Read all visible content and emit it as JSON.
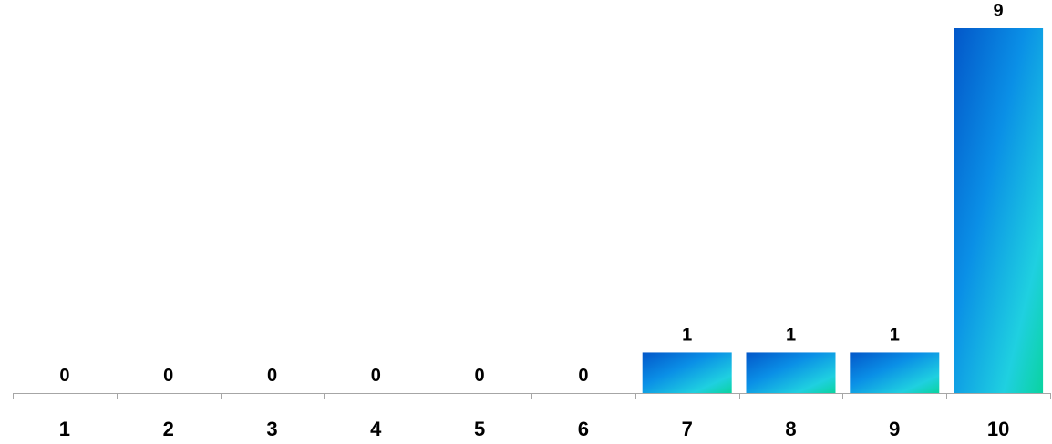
{
  "chart_data": {
    "type": "bar",
    "categories": [
      "1",
      "2",
      "3",
      "4",
      "5",
      "6",
      "7",
      "8",
      "9",
      "10"
    ],
    "values": [
      0,
      0,
      0,
      0,
      0,
      0,
      1,
      1,
      1,
      9
    ],
    "value_labels": [
      "0",
      "0",
      "0",
      "0",
      "0",
      "0",
      "1",
      "1",
      "1",
      "9"
    ],
    "title": "",
    "xlabel": "",
    "ylabel": "",
    "ylim": [
      0,
      9
    ],
    "grid": false,
    "legend": "none",
    "colors": {
      "bar_gradient_start": "#0357c9",
      "bar_gradient_mid": "#0a8fe6",
      "bar_gradient_light": "#1fd0e0",
      "bar_gradient_end": "#0ad3a0",
      "axis": "#a6a6a6",
      "text": "#000000"
    }
  }
}
